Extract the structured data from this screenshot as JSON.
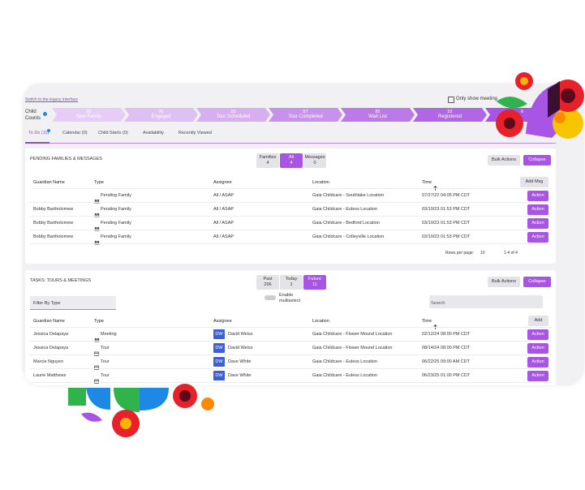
{
  "header": {
    "legacy_link": "Switch to the legacy interface",
    "meetings_toggle": "Only show meeting"
  },
  "pipeline": {
    "label": "Child Counts",
    "stages": [
      {
        "count": "50",
        "name": "New Family"
      },
      {
        "count": "36",
        "name": "Engaged"
      },
      {
        "count": "93",
        "name": "Tour Scheduled"
      },
      {
        "count": "57",
        "name": "Tour Completed"
      },
      {
        "count": "85",
        "name": "Wait List"
      },
      {
        "count": "52",
        "name": "Registered"
      },
      {
        "count": "6"
      }
    ]
  },
  "tabs": [
    "To Do (11)",
    "Calendar (0)",
    "Child Starts (0)",
    "Availability",
    "Recently Viewed"
  ],
  "action_label": "Action",
  "pending": {
    "title": "PENDING FAMILIES & MESSAGES",
    "toggles": [
      {
        "label": "Families",
        "count": "4"
      },
      {
        "label": "All",
        "count": "4"
      },
      {
        "label": "Messages",
        "count": "0"
      }
    ],
    "selected": 1,
    "bulk": "Bulk Actions",
    "collapse": "Collapse",
    "columns": [
      "Guardian Name",
      "Type",
      "Assignee",
      "Location",
      "Time"
    ],
    "add": "Add Msg",
    "rows": [
      {
        "type": "Pending Family",
        "assignee": "All / ASAP",
        "location": "Gaia Childcare - Southlake Location",
        "time": "07/27/22 04:05 PM CDT"
      },
      {
        "guardian": "Bobby Bartholomew",
        "type": "Pending Family",
        "assignee": "All / ASAP",
        "location": "Gaia Childcare - Euless Location",
        "time": "03/10/23 01:53 PM CDT"
      },
      {
        "guardian": "Bobby Bartholomew",
        "type": "Pending Family",
        "assignee": "All / ASAP",
        "location": "Gaia Childcare - Bedford Location",
        "time": "03/10/23 01:53 PM CDT"
      },
      {
        "guardian": "Bobby Bartholomew",
        "type": "Pending Family",
        "assignee": "All / ASAP",
        "location": "Gaia Childcare - Colleyville Location",
        "time": "03/10/23 01:53 PM CDT"
      }
    ],
    "rows_per_page_label": "Rows per page:",
    "rows_per_page": "10",
    "range": "1-4 of 4"
  },
  "tasks": {
    "title": "TASKS: TOURS & MEETINGS",
    "toggles": [
      {
        "label": "Past",
        "count": "206"
      },
      {
        "label": "Today",
        "count": "1"
      },
      {
        "label": "Future",
        "count": "11"
      }
    ],
    "selected": 2,
    "bulk": "Bulk Actions",
    "collapse": "Collapse",
    "multiselect": "Enable multiselect",
    "filter": "Filter By Type",
    "search": "Search",
    "columns": [
      "Guardian Name",
      "Type",
      "Assignee",
      "Location",
      "Time"
    ],
    "add": "Add",
    "rows": [
      {
        "guardian": "Jessica Delapaya",
        "type": "Meeting",
        "initials": "DW",
        "assignee": "David Weiss",
        "location": "Gaia Childcare - Flower Mound Location",
        "time": "02/12/24 08:00 PM CDT"
      },
      {
        "guardian": "Jessica Delapaya",
        "type": "Tour",
        "initials": "DW",
        "assignee": "David Weiss",
        "location": "Gaia Childcare - Flower Mound Location",
        "time": "08/14/24 08:00 PM CDT"
      },
      {
        "guardian": "Marcie Nguyen",
        "type": "Tour",
        "initials": "DW",
        "assignee": "Dave White",
        "location": "Gaia Childcare - Euless Location",
        "time": "06/22/25 09:00 AM CDT"
      },
      {
        "guardian": "Laurie Matthews",
        "type": "Tour",
        "initials": "DW",
        "assignee": "Dave White",
        "location": "Gaia Childcare - Euless Location",
        "time": "06/23/25 01:00 PM CDT"
      }
    ]
  }
}
